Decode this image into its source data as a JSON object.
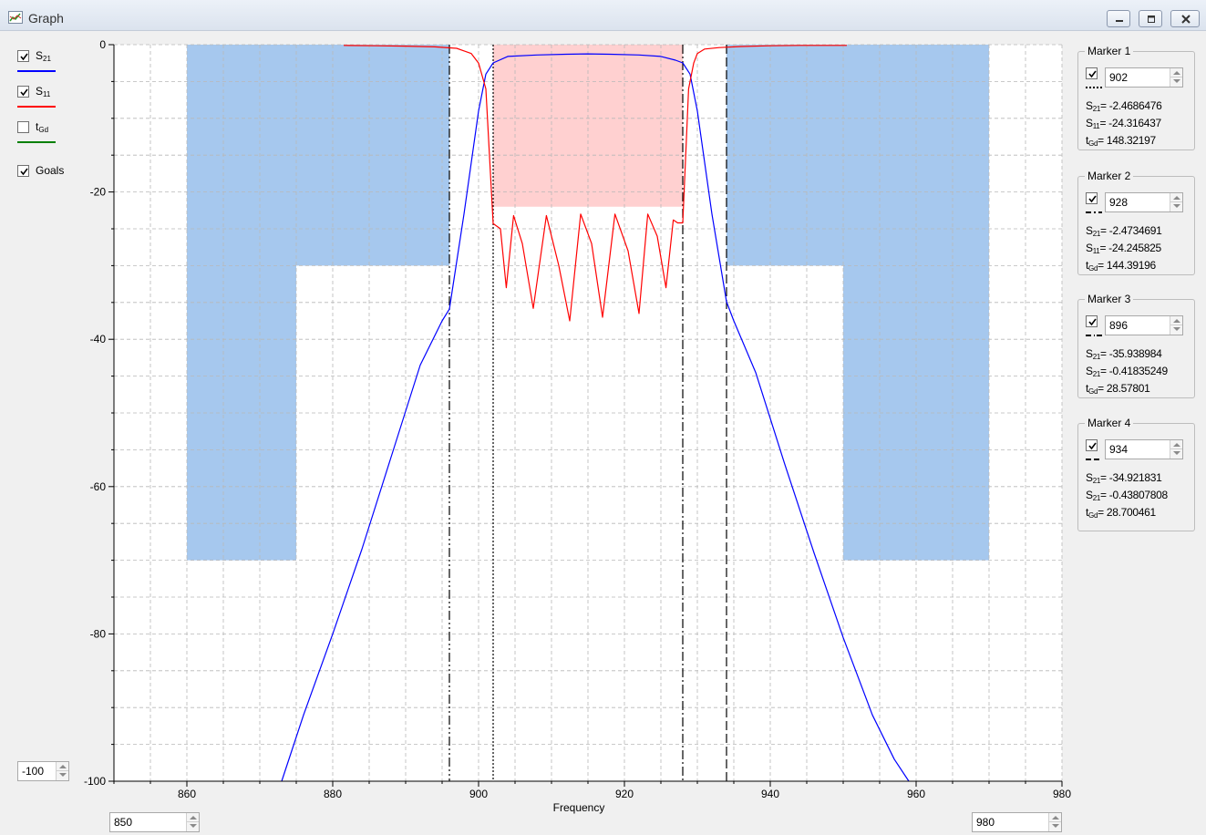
{
  "window": {
    "title": "Graph",
    "colors": {
      "titlebar": "#dbe3ee",
      "background": "#f0f0f0"
    }
  },
  "legend": [
    {
      "name": "S21",
      "main": "S",
      "sub": "21",
      "checked": true,
      "color": "#0000ff"
    },
    {
      "name": "S11",
      "main": "S",
      "sub": "11",
      "checked": true,
      "color": "#ff0000"
    },
    {
      "name": "tGd",
      "main": "t",
      "sub": "Gd",
      "checked": false,
      "color": "#008000"
    },
    {
      "name": "Goals",
      "main": "Goals",
      "sub": "",
      "checked": true,
      "color": ""
    }
  ],
  "controls": {
    "y_min_value": "-100",
    "x_min_value": "850",
    "x_max_value": "980"
  },
  "markers": [
    {
      "title": "Marker 1",
      "checked": true,
      "value": "902",
      "line_style": "dotted",
      "lines": [
        {
          "sym": "S",
          "sub": "21",
          "text": "= -2.4686476"
        },
        {
          "sym": "S",
          "sub": "11",
          "text": "= -24.316437"
        },
        {
          "sym": "t",
          "sub": "Gd",
          "text": "= 148.32197"
        }
      ]
    },
    {
      "title": "Marker 2",
      "checked": true,
      "value": "928",
      "line_style": "dashdot",
      "lines": [
        {
          "sym": "S",
          "sub": "21",
          "text": "= -2.4734691"
        },
        {
          "sym": "S",
          "sub": "11",
          "text": "= -24.245825"
        },
        {
          "sym": "t",
          "sub": "Gd",
          "text": "= 144.39196"
        }
      ]
    },
    {
      "title": "Marker 3",
      "checked": true,
      "value": "896",
      "line_style": "dashdotdot",
      "lines": [
        {
          "sym": "S",
          "sub": "21",
          "text": "= -35.938984"
        },
        {
          "sym": "S",
          "sub": "21",
          "text": "= -0.41835249"
        },
        {
          "sym": "t",
          "sub": "Gd",
          "text": "= 28.57801"
        }
      ]
    },
    {
      "title": "Marker 4",
      "checked": true,
      "value": "934",
      "line_style": "dashed",
      "lines": [
        {
          "sym": "S",
          "sub": "21",
          "text": "= -34.921831"
        },
        {
          "sym": "S",
          "sub": "21",
          "text": "= -0.43807808"
        },
        {
          "sym": "t",
          "sub": "Gd",
          "text": "= 28.700461"
        }
      ]
    }
  ],
  "chart_data": {
    "type": "line",
    "xlabel": "Frequency",
    "ylabel": "",
    "xlim": [
      850,
      980
    ],
    "ylim": [
      -100,
      0
    ],
    "x_ticks": [
      860,
      880,
      900,
      920,
      940,
      960,
      980
    ],
    "y_ticks": [
      0,
      -20,
      -40,
      -60,
      -80,
      -100
    ],
    "x_tick_labels": [
      "860",
      "880",
      "900",
      "920",
      "940",
      "960",
      "980"
    ],
    "y_tick_labels": [
      "0",
      "-20",
      "-40",
      "-60",
      "-80",
      "-100"
    ],
    "grid": true,
    "minor_grid": "dashed",
    "goal_regions": [
      {
        "type": "stopband",
        "x": [
          860,
          875
        ],
        "y_top": 0,
        "y_bottom": -70,
        "color": "#a6c8ee"
      },
      {
        "type": "stopband",
        "x": [
          875,
          896
        ],
        "y_top": 0,
        "y_bottom": -30,
        "color": "#a6c8ee"
      },
      {
        "type": "stopband",
        "x": [
          934,
          950
        ],
        "y_top": 0,
        "y_bottom": -30,
        "color": "#a6c8ee"
      },
      {
        "type": "stopband",
        "x": [
          950,
          970
        ],
        "y_top": 0,
        "y_bottom": -70,
        "color": "#a6c8ee"
      },
      {
        "type": "passband_return_loss",
        "x": [
          902,
          928
        ],
        "y_top": 0,
        "y_bottom": -22,
        "color": "#ffd0d0"
      }
    ],
    "marker_lines": [
      {
        "x": 902,
        "style": "dotted"
      },
      {
        "x": 928,
        "style": "dashdot"
      },
      {
        "x": 896,
        "style": "dashdotdot"
      },
      {
        "x": 934,
        "style": "dashed"
      }
    ],
    "series": [
      {
        "name": "S21",
        "color": "#0000ff",
        "x": [
          873,
          876,
          880,
          884,
          888,
          892,
          895,
          896,
          898,
          900,
          901,
          902,
          904,
          908,
          912,
          915,
          918,
          922,
          925,
          927,
          928,
          929,
          930,
          932,
          934,
          935,
          938,
          942,
          946,
          950,
          954,
          957,
          959
        ],
        "y": [
          -100,
          -91,
          -80,
          -68.5,
          -56,
          -43.5,
          -37.5,
          -35.9,
          -23,
          -9,
          -4,
          -2.47,
          -1.6,
          -1.4,
          -1.3,
          -1.25,
          -1.3,
          -1.4,
          -1.6,
          -2.1,
          -2.47,
          -4,
          -9,
          -23,
          -34.9,
          -37.5,
          -44.5,
          -57,
          -69,
          -80.5,
          -91,
          -97,
          -100
        ]
      },
      {
        "name": "S11",
        "color": "#ff0000",
        "x": [
          881.5,
          886,
          890,
          894,
          897,
          899,
          900,
          901,
          902,
          903,
          903.8,
          904.8,
          906,
          907.5,
          909.3,
          911,
          912.5,
          914,
          915.5,
          917,
          918.7,
          920.5,
          922,
          923.2,
          924.5,
          925.7,
          926.7,
          927.3,
          928,
          928.8,
          929.5,
          930,
          931,
          933,
          936,
          940,
          944,
          950.5
        ],
        "y": [
          -0.1,
          -0.15,
          -0.2,
          -0.3,
          -0.5,
          -1.2,
          -2.5,
          -6,
          -24.3,
          -25,
          -33,
          -23.2,
          -27,
          -35.8,
          -23.2,
          -30,
          -37.5,
          -23,
          -27,
          -37,
          -23,
          -28,
          -36.5,
          -23,
          -26,
          -33,
          -23.8,
          -24.2,
          -24.2,
          -6,
          -2.5,
          -1.2,
          -0.6,
          -0.4,
          -0.25,
          -0.15,
          -0.1,
          -0.1
        ]
      }
    ]
  }
}
